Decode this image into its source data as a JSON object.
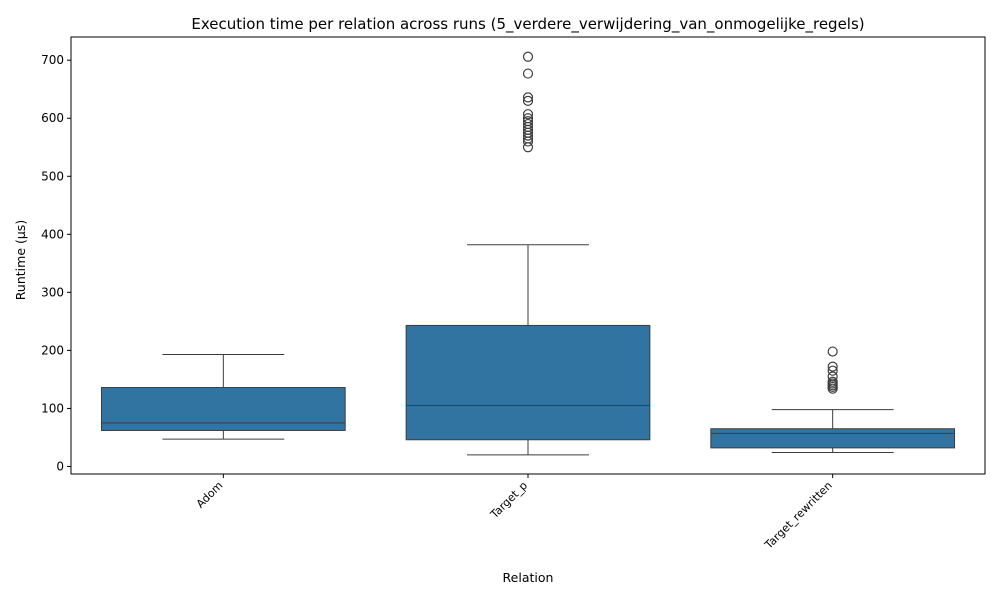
{
  "chart_data": {
    "type": "box",
    "title": "Execution time per relation across runs (5_verdere_verwijdering_van_onmogelijke_regels)",
    "xlabel": "Relation",
    "ylabel": "Runtime (µs)",
    "ylim": [
      -13,
      740
    ],
    "yticks": [
      0,
      100,
      200,
      300,
      400,
      500,
      600,
      700
    ],
    "grid": false,
    "legend": "none",
    "box_color": "#3274a1",
    "line_color": "#3d3d3d",
    "categories": [
      "Adom",
      "Target_p",
      "Target_rewritten"
    ],
    "boxes": [
      {
        "category": "Adom",
        "whisker_low": 47,
        "q1": 62,
        "median": 75,
        "q3": 136,
        "whisker_high": 193,
        "outliers": []
      },
      {
        "category": "Target_p",
        "whisker_low": 20,
        "q1": 46,
        "median": 105,
        "q3": 243,
        "whisker_high": 382,
        "outliers": [
          550,
          560,
          565,
          570,
          575,
          580,
          585,
          590,
          595,
          600,
          607,
          630,
          636,
          677,
          706
        ]
      },
      {
        "category": "Target_rewritten",
        "whisker_low": 24,
        "q1": 32,
        "median": 57,
        "q3": 65,
        "whisker_high": 98,
        "outliers": [
          134,
          137,
          140,
          143,
          146,
          155,
          165,
          172,
          198
        ]
      }
    ]
  }
}
